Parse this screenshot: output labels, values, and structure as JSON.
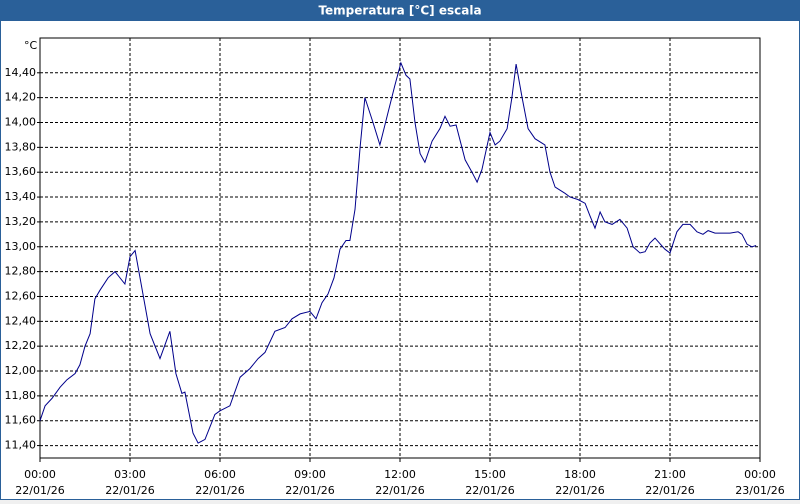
{
  "chart_data": {
    "type": "line",
    "title": "Temperatura [°C] escala",
    "y_unit": "°C",
    "xlim": [
      0,
      24
    ],
    "xticks": [
      {
        "value": 0,
        "label": "00:00"
      },
      {
        "value": 3,
        "label": "03:00"
      },
      {
        "value": 6,
        "label": "06:00"
      },
      {
        "value": 9,
        "label": "09:00"
      },
      {
        "value": 12,
        "label": "12:00"
      },
      {
        "value": 15,
        "label": "15:00"
      },
      {
        "value": 18,
        "label": "18:00"
      },
      {
        "value": 21,
        "label": "21:00"
      },
      {
        "value": 24,
        "label": "00:00"
      }
    ],
    "xtick_dates": [
      "22/01/26",
      "22/01/26",
      "22/01/26",
      "22/01/26",
      "22/01/26",
      "22/01/26",
      "22/01/26",
      "22/01/26",
      "23/01/26"
    ],
    "ylim": [
      11.3,
      14.68
    ],
    "yticks": [
      {
        "value": 11.4,
        "label": "11,40"
      },
      {
        "value": 11.6,
        "label": "11,60"
      },
      {
        "value": 11.8,
        "label": "11,80"
      },
      {
        "value": 12.0,
        "label": "12,00"
      },
      {
        "value": 12.2,
        "label": "12,20"
      },
      {
        "value": 12.4,
        "label": "12,40"
      },
      {
        "value": 12.6,
        "label": "12,60"
      },
      {
        "value": 12.8,
        "label": "12,80"
      },
      {
        "value": 13.0,
        "label": "13,00"
      },
      {
        "value": 13.2,
        "label": "13,20"
      },
      {
        "value": 13.4,
        "label": "13,40"
      },
      {
        "value": 13.6,
        "label": "13,60"
      },
      {
        "value": 13.8,
        "label": "13,80"
      },
      {
        "value": 14.0,
        "label": "14,00"
      },
      {
        "value": 14.2,
        "label": "14,20"
      },
      {
        "value": 14.4,
        "label": "14,40"
      }
    ],
    "grid": true,
    "color": "#00008b",
    "x": [
      0,
      0.17,
      0.4,
      0.67,
      0.9,
      1.17,
      1.33,
      1.5,
      1.67,
      1.83,
      2.0,
      2.27,
      2.5,
      2.83,
      3.0,
      3.17,
      3.67,
      4.0,
      4.33,
      4.53,
      4.73,
      4.83,
      5.1,
      5.27,
      5.5,
      5.83,
      6.0,
      6.33,
      6.67,
      7.0,
      7.27,
      7.5,
      7.83,
      8.17,
      8.4,
      8.67,
      9.0,
      9.2,
      9.4,
      9.6,
      9.8,
      10.0,
      10.2,
      10.33,
      10.5,
      10.67,
      10.83,
      11.1,
      11.33,
      11.57,
      11.83,
      12.03,
      12.2,
      12.33,
      12.5,
      12.67,
      12.83,
      13.07,
      13.33,
      13.5,
      13.67,
      13.87,
      14.17,
      14.4,
      14.57,
      14.73,
      15.0,
      15.17,
      15.33,
      15.57,
      15.73,
      15.87,
      16.07,
      16.27,
      16.5,
      16.83,
      17.0,
      17.17,
      17.5,
      17.67,
      17.93,
      18.17,
      18.33,
      18.5,
      18.67,
      18.83,
      19.07,
      19.33,
      19.57,
      19.77,
      20.0,
      20.17,
      20.33,
      20.5,
      20.83,
      21.0,
      21.23,
      21.43,
      21.67,
      21.9,
      22.1,
      22.27,
      22.5,
      23.0,
      23.27,
      23.4,
      23.57,
      23.73,
      23.87
    ],
    "values": [
      11.6,
      11.72,
      11.78,
      11.87,
      11.93,
      11.98,
      12.05,
      12.2,
      12.3,
      12.58,
      12.65,
      12.75,
      12.8,
      12.7,
      12.92,
      12.97,
      12.3,
      12.1,
      12.32,
      11.98,
      11.82,
      11.83,
      11.5,
      11.42,
      11.45,
      11.65,
      11.68,
      11.72,
      11.95,
      12.02,
      12.1,
      12.15,
      12.32,
      12.35,
      12.42,
      12.46,
      12.48,
      12.42,
      12.55,
      12.62,
      12.75,
      12.98,
      13.05,
      13.05,
      13.3,
      13.8,
      14.2,
      14.0,
      13.82,
      14.05,
      14.3,
      14.48,
      14.38,
      14.35,
      14.0,
      13.75,
      13.68,
      13.85,
      13.95,
      14.05,
      13.97,
      13.98,
      13.7,
      13.6,
      13.52,
      13.62,
      13.92,
      13.82,
      13.85,
      13.95,
      14.2,
      14.47,
      14.2,
      13.95,
      13.87,
      13.82,
      13.6,
      13.48,
      13.43,
      13.4,
      13.38,
      13.35,
      13.25,
      13.15,
      13.28,
      13.2,
      13.18,
      13.22,
      13.15,
      13.0,
      12.95,
      12.96,
      13.03,
      13.07,
      12.98,
      12.95,
      13.12,
      13.18,
      13.18,
      13.12,
      13.1,
      13.13,
      13.11,
      13.11,
      13.12,
      13.1,
      13.02,
      13.0,
      13.01
    ]
  }
}
